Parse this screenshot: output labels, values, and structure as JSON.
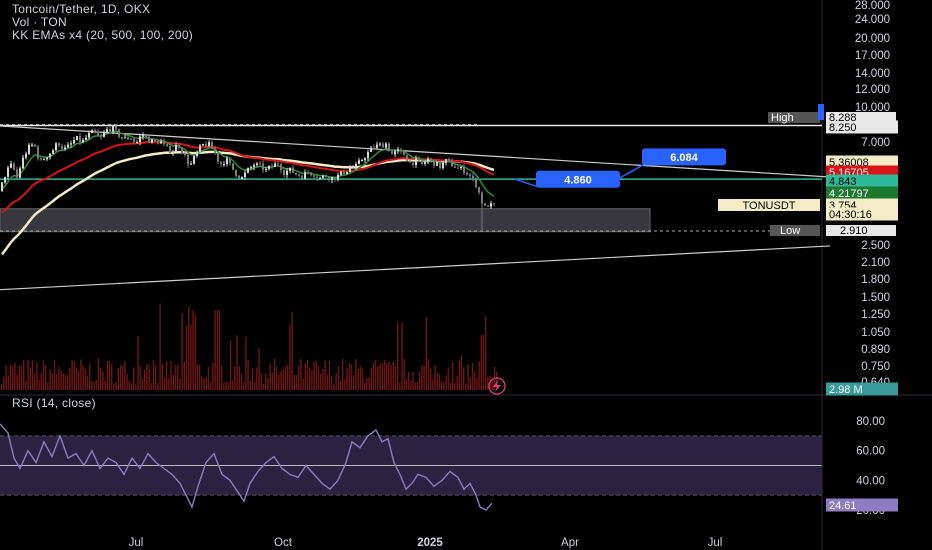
{
  "legend": {
    "line1": "Toncoin/Tether, 1D, OKX",
    "line2": "Vol · TON",
    "line3": "KK EMAs x4 (20, 500, 100, 200)"
  },
  "rsi_legend": "RSI (14, close)",
  "colors": {
    "background": "#000000",
    "candle_up": "#d9d9d9",
    "candle_down": "#7a7a7a",
    "ema_fast": "#2e8b2e",
    "ema_red": "#d81414",
    "ema_cream": "#f3ecc6",
    "support_line": "#2bb99a",
    "rsi_line": "#8e7cc3",
    "rsi_band": "#2a2240",
    "callout": "#2962ff",
    "volume_bar": "#8a1b1b"
  },
  "icons": {
    "lightning": "lightning-icon"
  },
  "chart_data": [
    {
      "type": "candlestick",
      "series_name": "TONUSDT",
      "scale": "log",
      "x_axis_ticks": [
        "Jul",
        "Oct",
        "2025",
        "Apr",
        "Jul"
      ],
      "y_axis_ticks": [
        "28.000",
        "24.000",
        "20.000",
        "17.000",
        "14.000",
        "12.000",
        "10.000",
        "7.000",
        "2.500",
        "2.100",
        "1.800",
        "1.500",
        "1.250",
        "1.050",
        "0.890",
        "0.750",
        "0.640"
      ],
      "y_range": [
        0.6,
        30
      ],
      "price_path": [
        [
          0,
          4.3
        ],
        [
          6,
          5.2
        ],
        [
          12,
          5.6
        ],
        [
          17,
          4.9
        ],
        [
          22,
          5.8
        ],
        [
          28,
          6.6
        ],
        [
          34,
          6.9
        ],
        [
          40,
          5.7
        ],
        [
          46,
          6.1
        ],
        [
          52,
          6.4
        ],
        [
          58,
          7.0
        ],
        [
          64,
          6.5
        ],
        [
          70,
          6.8
        ],
        [
          76,
          7.3
        ],
        [
          82,
          7.0
        ],
        [
          88,
          7.5
        ],
        [
          94,
          7.8
        ],
        [
          100,
          7.2
        ],
        [
          106,
          7.9
        ],
        [
          112,
          8.1
        ],
        [
          118,
          7.6
        ],
        [
          124,
          7.2
        ],
        [
          130,
          7.4
        ],
        [
          136,
          6.9
        ],
        [
          142,
          7.6
        ],
        [
          148,
          7.2
        ],
        [
          154,
          7.0
        ],
        [
          160,
          7.1
        ],
        [
          166,
          6.6
        ],
        [
          172,
          6.4
        ],
        [
          178,
          6.9
        ],
        [
          184,
          6.2
        ],
        [
          190,
          5.5
        ],
        [
          196,
          6.2
        ],
        [
          202,
          6.8
        ],
        [
          208,
          6.9
        ],
        [
          214,
          6.4
        ],
        [
          220,
          5.6
        ],
        [
          226,
          5.9
        ],
        [
          232,
          5.4
        ],
        [
          238,
          5.0
        ],
        [
          242,
          4.9
        ],
        [
          248,
          5.3
        ],
        [
          254,
          5.6
        ],
        [
          260,
          5.5
        ],
        [
          266,
          5.3
        ],
        [
          272,
          5.5
        ],
        [
          278,
          5.7
        ],
        [
          284,
          5.2
        ],
        [
          290,
          5.3
        ],
        [
          296,
          5.1
        ],
        [
          302,
          5.0
        ],
        [
          308,
          5.2
        ],
        [
          314,
          5.1
        ],
        [
          320,
          4.9
        ],
        [
          326,
          5.0
        ],
        [
          332,
          4.9
        ],
        [
          338,
          5.0
        ],
        [
          344,
          5.2
        ],
        [
          350,
          5.4
        ],
        [
          356,
          5.5
        ],
        [
          362,
          5.9
        ],
        [
          368,
          6.3
        ],
        [
          374,
          6.7
        ],
        [
          380,
          6.8
        ],
        [
          386,
          6.9
        ],
        [
          392,
          6.2
        ],
        [
          398,
          6.4
        ],
        [
          404,
          6.2
        ],
        [
          410,
          5.7
        ],
        [
          416,
          5.8
        ],
        [
          422,
          5.6
        ],
        [
          428,
          5.9
        ],
        [
          434,
          5.7
        ],
        [
          440,
          5.5
        ],
        [
          446,
          5.8
        ],
        [
          452,
          5.6
        ],
        [
          458,
          5.4
        ],
        [
          464,
          5.3
        ],
        [
          470,
          5.0
        ],
        [
          476,
          4.6
        ],
        [
          480,
          4.1
        ],
        [
          484,
          3.6
        ],
        [
          488,
          3.75
        ],
        [
          492,
          3.7
        ],
        [
          496,
          3.754
        ]
      ],
      "tooltips": {
        "high": {
          "label": "High",
          "value": "8.288"
        },
        "low": {
          "label": "Low",
          "value": "2.910"
        }
      },
      "price_labels": [
        "8.250",
        "5.36008",
        "5.16705",
        "4.843",
        "4.21797",
        "3.754",
        "04:30:16"
      ],
      "annotations": [
        {
          "text": "4.860",
          "price": 4.86,
          "anchor_price": 4.843
        },
        {
          "text": "6.084",
          "price": 6.084,
          "anchor_price": 4.86
        }
      ],
      "horizontal_levels": {
        "high_line": 8.288,
        "support": 4.843,
        "low": 2.91
      },
      "trendlines": [
        {
          "name": "upper-descending",
          "from": [
            0,
            8.25
          ],
          "to": [
            830,
            4.95
          ]
        },
        {
          "name": "lower-ascending",
          "from": [
            0,
            1.6
          ],
          "to": [
            830,
            2.48
          ]
        }
      ],
      "zone": {
        "from_x": 0,
        "to_x": 650,
        "top_price": 3.6,
        "bottom_price": 2.86
      },
      "volume_label": "2.98 M"
    },
    {
      "type": "line",
      "series_name": "RSI (14, close)",
      "y_axis_ticks": [
        "80.00",
        "60.00",
        "40.00",
        "20.00"
      ],
      "y_range": [
        13,
        92
      ],
      "band": {
        "upper": 70,
        "lower": 30,
        "middle": 50
      },
      "current_value": "24.61",
      "values": [
        [
          0,
          78
        ],
        [
          8,
          72
        ],
        [
          14,
          55
        ],
        [
          20,
          48
        ],
        [
          28,
          60
        ],
        [
          36,
          52
        ],
        [
          44,
          66
        ],
        [
          52,
          56
        ],
        [
          60,
          70
        ],
        [
          68,
          55
        ],
        [
          76,
          58
        ],
        [
          84,
          50
        ],
        [
          92,
          60
        ],
        [
          100,
          48
        ],
        [
          108,
          55
        ],
        [
          116,
          52
        ],
        [
          124,
          44
        ],
        [
          132,
          55
        ],
        [
          140,
          48
        ],
        [
          148,
          58
        ],
        [
          156,
          52
        ],
        [
          164,
          48
        ],
        [
          172,
          44
        ],
        [
          180,
          38
        ],
        [
          186,
          30
        ],
        [
          192,
          22
        ],
        [
          198,
          36
        ],
        [
          206,
          52
        ],
        [
          214,
          58
        ],
        [
          222,
          44
        ],
        [
          230,
          40
        ],
        [
          238,
          32
        ],
        [
          244,
          26
        ],
        [
          250,
          38
        ],
        [
          258,
          46
        ],
        [
          266,
          52
        ],
        [
          274,
          56
        ],
        [
          282,
          48
        ],
        [
          290,
          44
        ],
        [
          298,
          42
        ],
        [
          306,
          50
        ],
        [
          314,
          44
        ],
        [
          322,
          38
        ],
        [
          330,
          34
        ],
        [
          338,
          40
        ],
        [
          346,
          52
        ],
        [
          352,
          66
        ],
        [
          360,
          62
        ],
        [
          368,
          70
        ],
        [
          376,
          74
        ],
        [
          382,
          66
        ],
        [
          388,
          68
        ],
        [
          394,
          52
        ],
        [
          400,
          44
        ],
        [
          406,
          34
        ],
        [
          412,
          38
        ],
        [
          418,
          44
        ],
        [
          426,
          42
        ],
        [
          434,
          36
        ],
        [
          442,
          40
        ],
        [
          450,
          46
        ],
        [
          458,
          42
        ],
        [
          464,
          34
        ],
        [
          470,
          38
        ],
        [
          476,
          30
        ],
        [
          480,
          22
        ],
        [
          486,
          20
        ],
        [
          492,
          24.61
        ]
      ]
    }
  ]
}
